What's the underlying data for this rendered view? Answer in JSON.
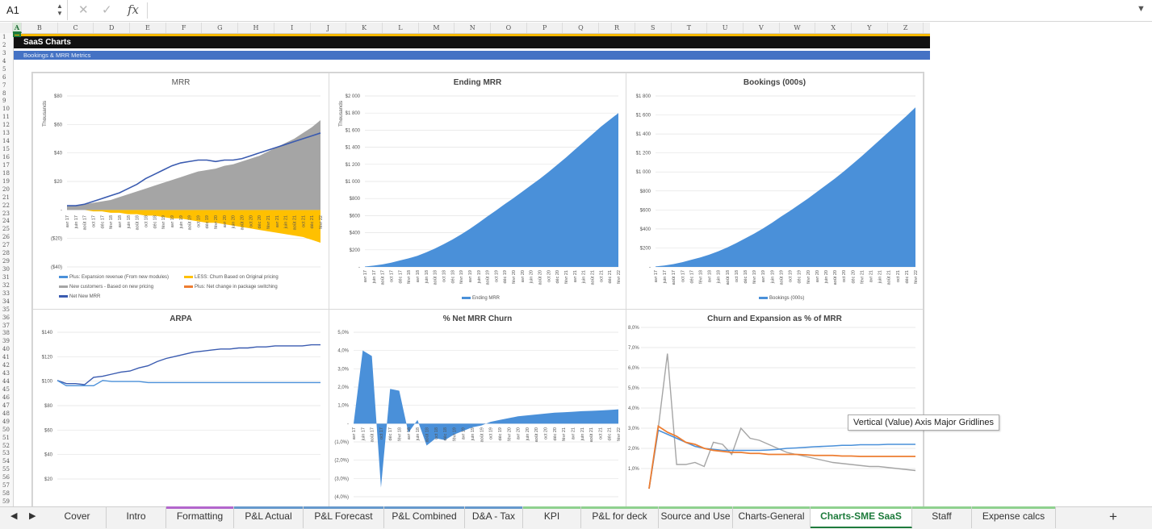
{
  "formula_bar": {
    "name_box": "A1",
    "cancel_icon": "✕",
    "enter_icon": "✓",
    "fx": "fx",
    "formula": ""
  },
  "columns": [
    "A",
    "B",
    "C",
    "D",
    "E",
    "F",
    "G",
    "H",
    "I",
    "J",
    "K",
    "L",
    "M",
    "N",
    "O",
    "P",
    "Q",
    "R",
    "S",
    "T",
    "U",
    "V",
    "W",
    "X",
    "Y",
    "Z"
  ],
  "rows": 59,
  "sheet": {
    "title": "SaaS Charts",
    "subtitle": "Bookings & MRR Metrics"
  },
  "months": [
    "avr 17",
    "juin 17",
    "août 17",
    "oct 17",
    "déc 17",
    "févr 18",
    "avr 18",
    "juin 18",
    "août 18",
    "oct 18",
    "déc 18",
    "févr 19",
    "avr 19",
    "juin 19",
    "août 19",
    "oct 19",
    "déc 19",
    "févr 20",
    "avr 20",
    "juin 20",
    "août 20",
    "oct 20",
    "déc 20",
    "févr 21",
    "avr 21",
    "juin 21",
    "août 21",
    "oct 21",
    "déc 21",
    "févr 22"
  ],
  "colors": {
    "blue": "#4a90d9",
    "gray": "#a5a5a5",
    "yellow": "#ffc000",
    "orange": "#ed7d31",
    "navy": "#3a5bb0",
    "accent": "#1e7b3c"
  },
  "charts": {
    "mrr": {
      "title": "MRR",
      "unit": "Thousands",
      "yticks": [
        "$80",
        "$60",
        "$40",
        "$20",
        "-",
        "($20)",
        "($40)"
      ],
      "ylim": [
        -40,
        80
      ],
      "legend": [
        "Plus: Expansion revenue (From new modules)",
        "LESS: Churn Based on Original pricing",
        "New customers - Based on new pricing",
        "Plus: Net change in package switching",
        "Net New MRR"
      ],
      "chart_data": {
        "type": "area",
        "series": [
          {
            "name": "New customers - Based on new pricing",
            "values": [
              3,
              3,
              4,
              5,
              6,
              7,
              9,
              11,
              13,
              15,
              17,
              19,
              21,
              23,
              25,
              27,
              28,
              29,
              31,
              32,
              34,
              36,
              38,
              41,
              44,
              47,
              50,
              54,
              58,
              63
            ]
          },
          {
            "name": "LESS: Churn Based on Original pricing",
            "values": [
              0,
              0,
              0,
              -1,
              -1,
              -2,
              -2,
              -3,
              -3,
              -4,
              -4,
              -5,
              -6,
              -6,
              -7,
              -8,
              -9,
              -9,
              -10,
              -11,
              -12,
              -13,
              -14,
              -15,
              -16,
              -17,
              -18,
              -19,
              -21,
              -23
            ]
          },
          {
            "name": "Net New MRR",
            "values": [
              3,
              3,
              4,
              6,
              8,
              10,
              12,
              15,
              18,
              22,
              25,
              28,
              31,
              33,
              34,
              35,
              35,
              34,
              35,
              35,
              36,
              38,
              40,
              42,
              44,
              46,
              48,
              50,
              52,
              54
            ]
          }
        ]
      }
    },
    "ending_mrr": {
      "title": "Ending MRR",
      "unit": "Thousands",
      "yticks": [
        "$2 000",
        "$1 800",
        "$1 600",
        "$1 400",
        "$1 200",
        "$1 000",
        "$800",
        "$600",
        "$400",
        "$200",
        "-"
      ],
      "ylim": [
        0,
        2000
      ],
      "legend": [
        "Ending MRR"
      ],
      "chart_data": {
        "type": "area",
        "series": [
          {
            "name": "Ending MRR",
            "values": [
              5,
              15,
              30,
              50,
              75,
              100,
              130,
              170,
              215,
              265,
              320,
              380,
              445,
              515,
              590,
              660,
              735,
              805,
              880,
              955,
              1030,
              1110,
              1195,
              1280,
              1370,
              1460,
              1550,
              1640,
              1720,
              1800
            ]
          }
        ]
      }
    },
    "bookings": {
      "title": "Bookings (000s)",
      "yticks": [
        "$1 800",
        "$1 600",
        "$1 400",
        "$1 200",
        "$1 000",
        "$800",
        "$600",
        "$400",
        "$200",
        "-"
      ],
      "ylim": [
        0,
        1800
      ],
      "legend": [
        "Bookings (000s)"
      ],
      "chart_data": {
        "type": "area",
        "series": [
          {
            "name": "Bookings (000s)",
            "values": [
              5,
              15,
              30,
              50,
              75,
              100,
              130,
              165,
              205,
              250,
              300,
              350,
              405,
              465,
              530,
              590,
              655,
              720,
              790,
              860,
              930,
              1005,
              1085,
              1165,
              1250,
              1335,
              1420,
              1505,
              1590,
              1680
            ]
          }
        ]
      }
    },
    "arpa": {
      "title": "ARPA",
      "yticks": [
        "$140",
        "$120",
        "$100",
        "$80",
        "$60",
        "$40",
        "$20"
      ],
      "ylim": [
        0,
        140
      ],
      "chart_data": {
        "type": "line",
        "series": [
          {
            "name": "",
            "values": [
              94,
              91,
              91,
              90,
              97,
              98,
              100,
              102,
              103,
              106,
              108,
              112,
              115,
              117,
              119,
              121,
              122,
              123,
              124,
              124,
              125,
              125,
              126,
              126,
              127,
              127,
              127,
              127,
              128,
              128
            ]
          },
          {
            "name": "",
            "values": [
              94,
              89,
              89,
              89,
              89,
              94,
              93,
              93,
              93,
              93,
              92,
              92,
              92,
              92,
              92,
              92,
              92,
              92,
              92,
              92,
              92,
              92,
              92,
              92,
              92,
              92,
              92,
              92,
              92,
              92
            ]
          }
        ]
      }
    },
    "net_churn": {
      "title": "% Net MRR Churn",
      "yticks": [
        "5,0%",
        "4,0%",
        "3,0%",
        "2,0%",
        "1,0%",
        "-",
        "(1,0%)",
        "(2,0%)",
        "(3,0%)",
        "(4,0%)"
      ],
      "ylim": [
        -4,
        5
      ],
      "chart_data": {
        "type": "area",
        "values": [
          0,
          4.0,
          3.7,
          -3.5,
          1.9,
          1.8,
          -0.5,
          0.2,
          -1.2,
          -0.8,
          -0.9,
          -0.6,
          -0.4,
          -0.2,
          -0.1,
          0.1,
          0.2,
          0.3,
          0.4,
          0.45,
          0.5,
          0.55,
          0.6,
          0.62,
          0.65,
          0.68,
          0.7,
          0.72,
          0.75,
          0.78
        ]
      }
    },
    "churn_expansion": {
      "title": "Churn and Expansion as % of MRR",
      "yticks": [
        "8,0%",
        "7,0%",
        "6,0%",
        "5,0%",
        "4,0%",
        "3,0%",
        "2,0%",
        "1,0%"
      ],
      "ylim": [
        0,
        8
      ],
      "chart_data": {
        "type": "line",
        "series": [
          {
            "name": "",
            "values": [
              0,
              2.9,
              2.7,
              2.5,
              2.3,
              2.1,
              2.0,
              1.95,
              1.9,
              1.9,
              1.9,
              1.9,
              1.9,
              1.92,
              1.95,
              2.0,
              2.02,
              2.05,
              2.08,
              2.1,
              2.12,
              2.15,
              2.15,
              2.18,
              2.18,
              2.18,
              2.2,
              2.2,
              2.2,
              2.2
            ]
          },
          {
            "name": "",
            "values": [
              0,
              3.1,
              2.8,
              2.6,
              2.3,
              2.2,
              2.0,
              1.9,
              1.85,
              1.8,
              1.8,
              1.75,
              1.75,
              1.7,
              1.7,
              1.7,
              1.7,
              1.68,
              1.65,
              1.65,
              1.65,
              1.62,
              1.62,
              1.6,
              1.6,
              1.6,
              1.6,
              1.6,
              1.6,
              1.6
            ]
          },
          {
            "name": "",
            "values": [
              0,
              3.0,
              6.7,
              1.2,
              1.2,
              1.3,
              1.1,
              2.3,
              2.2,
              1.7,
              3.0,
              2.5,
              2.4,
              2.2,
              2.0,
              1.8,
              1.7,
              1.6,
              1.5,
              1.4,
              1.3,
              1.25,
              1.2,
              1.15,
              1.1,
              1.1,
              1.05,
              1.0,
              0.95,
              0.9
            ]
          }
        ]
      }
    }
  },
  "tooltip": "Vertical (Value) Axis Major Gridlines",
  "tabs": [
    {
      "label": "Cover",
      "color": ""
    },
    {
      "label": "Intro",
      "color": ""
    },
    {
      "label": "Formatting",
      "color": "#b366cc"
    },
    {
      "label": "P&L Actual",
      "color": "#6699cc"
    },
    {
      "label": "P&L Forecast",
      "color": "#6699cc"
    },
    {
      "label": "P&L Combined",
      "color": "#6699cc"
    },
    {
      "label": "D&A - Tax",
      "color": "#6699cc"
    },
    {
      "label": "KPI",
      "color": "#8fd18f"
    },
    {
      "label": "P&L for deck",
      "color": "#8fd18f"
    },
    {
      "label": "Source and Use",
      "color": "#8fd18f"
    },
    {
      "label": "Charts-General",
      "color": "#8fd18f"
    },
    {
      "label": "Charts-SME SaaS",
      "color": "#8fd18f",
      "active": true
    },
    {
      "label": "Staff",
      "color": "#8fd18f"
    },
    {
      "label": "Expense calcs",
      "color": "#8fd18f"
    }
  ]
}
